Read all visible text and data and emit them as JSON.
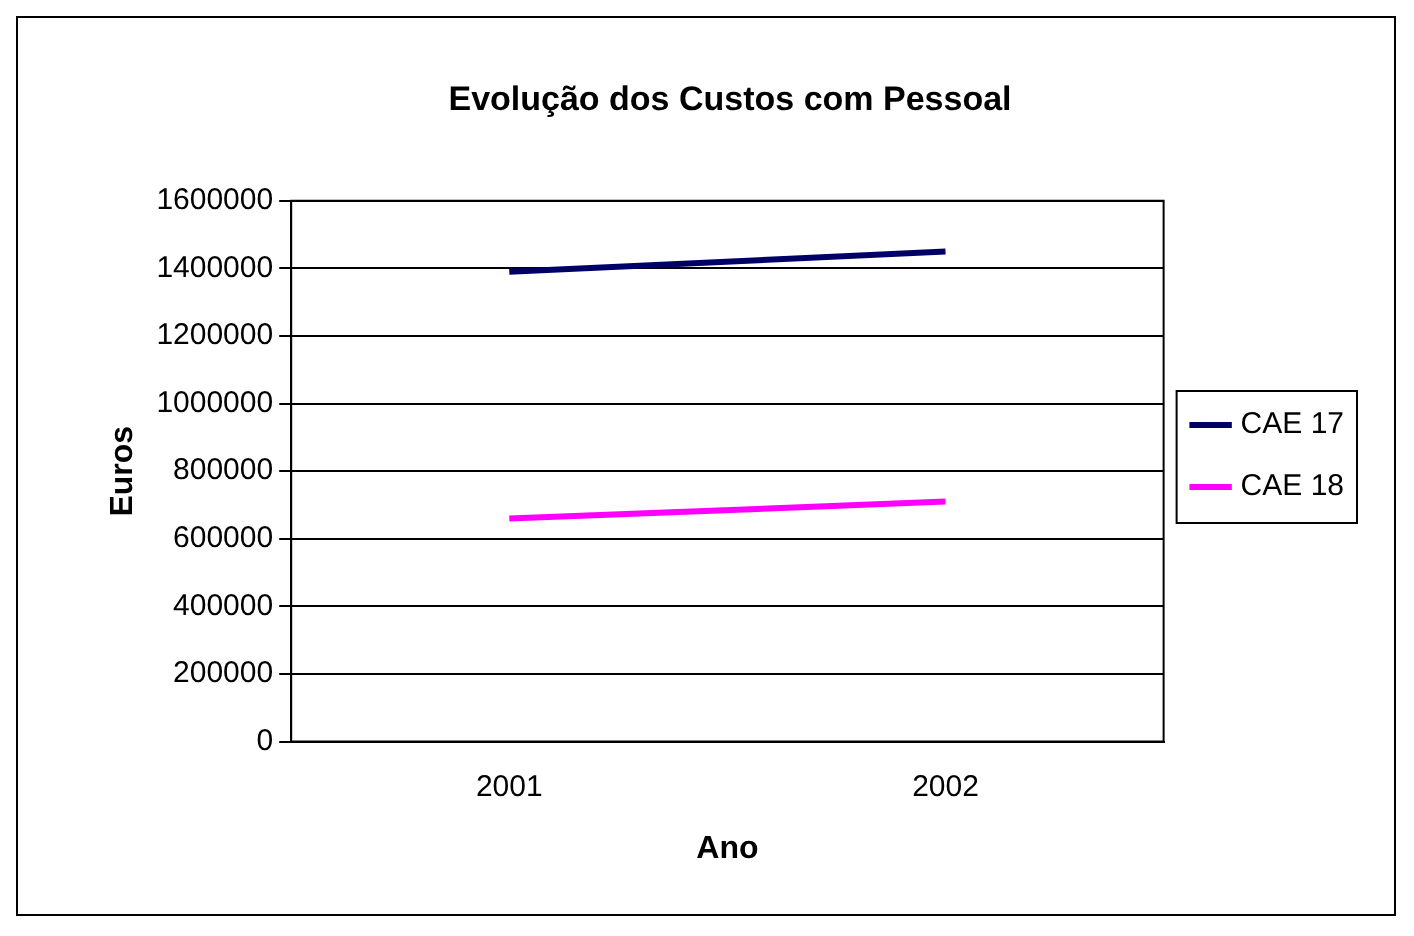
{
  "chart_data": {
    "type": "line",
    "title": "Evolução dos Custos com Pessoal",
    "xlabel": "Ano",
    "ylabel": "Euros",
    "categories": [
      "2001",
      "2002"
    ],
    "series": [
      {
        "name": "CAE 17",
        "color": "#000066",
        "values": [
          1390000,
          1450000
        ]
      },
      {
        "name": "CAE 18",
        "color": "#ff00ff",
        "values": [
          660000,
          710000
        ]
      }
    ],
    "ylim": [
      0,
      1600000
    ],
    "yticks": [
      0,
      200000,
      400000,
      600000,
      800000,
      1000000,
      1200000,
      1400000,
      1600000
    ],
    "grid": "y",
    "legend": "right",
    "marker": "none",
    "line_style": "solid"
  }
}
